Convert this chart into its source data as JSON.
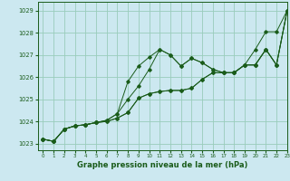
{
  "background_color": "#cce8f0",
  "grid_color": "#99ccbb",
  "line_color": "#1a5c1a",
  "title": "Graphe pression niveau de la mer (hPa)",
  "xlim": [
    -0.5,
    23
  ],
  "ylim": [
    1022.7,
    1029.4
  ],
  "yticks": [
    1023,
    1024,
    1025,
    1026,
    1027,
    1028,
    1029
  ],
  "xticks": [
    0,
    1,
    2,
    3,
    4,
    5,
    6,
    7,
    8,
    9,
    10,
    11,
    12,
    13,
    14,
    15,
    16,
    17,
    18,
    19,
    20,
    21,
    22,
    23
  ],
  "series": [
    [
      1023.2,
      1023.1,
      1023.65,
      1023.8,
      1023.85,
      1023.95,
      1024.05,
      1024.35,
      1025.8,
      1026.5,
      1026.9,
      1027.25,
      1027.0,
      1026.5,
      1026.85,
      1026.65,
      1026.35,
      1026.2,
      1026.2,
      1026.55,
      1027.25,
      1028.05,
      1028.05,
      1029.0
    ],
    [
      1023.2,
      1023.1,
      1023.65,
      1023.8,
      1023.85,
      1023.95,
      1024.05,
      1024.35,
      1025.0,
      1025.6,
      1026.35,
      1027.25,
      1027.0,
      1026.5,
      1026.85,
      1026.65,
      1026.35,
      1026.2,
      1026.2,
      1026.55,
      1026.55,
      1027.25,
      1026.55,
      1029.0
    ],
    [
      1023.2,
      1023.1,
      1023.65,
      1023.8,
      1023.85,
      1023.95,
      1024.0,
      1024.15,
      1024.4,
      1025.05,
      1025.25,
      1025.35,
      1025.4,
      1025.4,
      1025.5,
      1025.9,
      1026.2,
      1026.2,
      1026.2,
      1026.55,
      1026.55,
      1027.25,
      1026.55,
      1029.0
    ],
    [
      1023.2,
      1023.1,
      1023.65,
      1023.8,
      1023.85,
      1023.95,
      1024.0,
      1024.15,
      1024.4,
      1025.05,
      1025.25,
      1025.35,
      1025.4,
      1025.4,
      1025.5,
      1025.9,
      1026.2,
      1026.2,
      1026.2,
      1026.55,
      1026.55,
      1027.25,
      1026.55,
      1029.0
    ]
  ]
}
